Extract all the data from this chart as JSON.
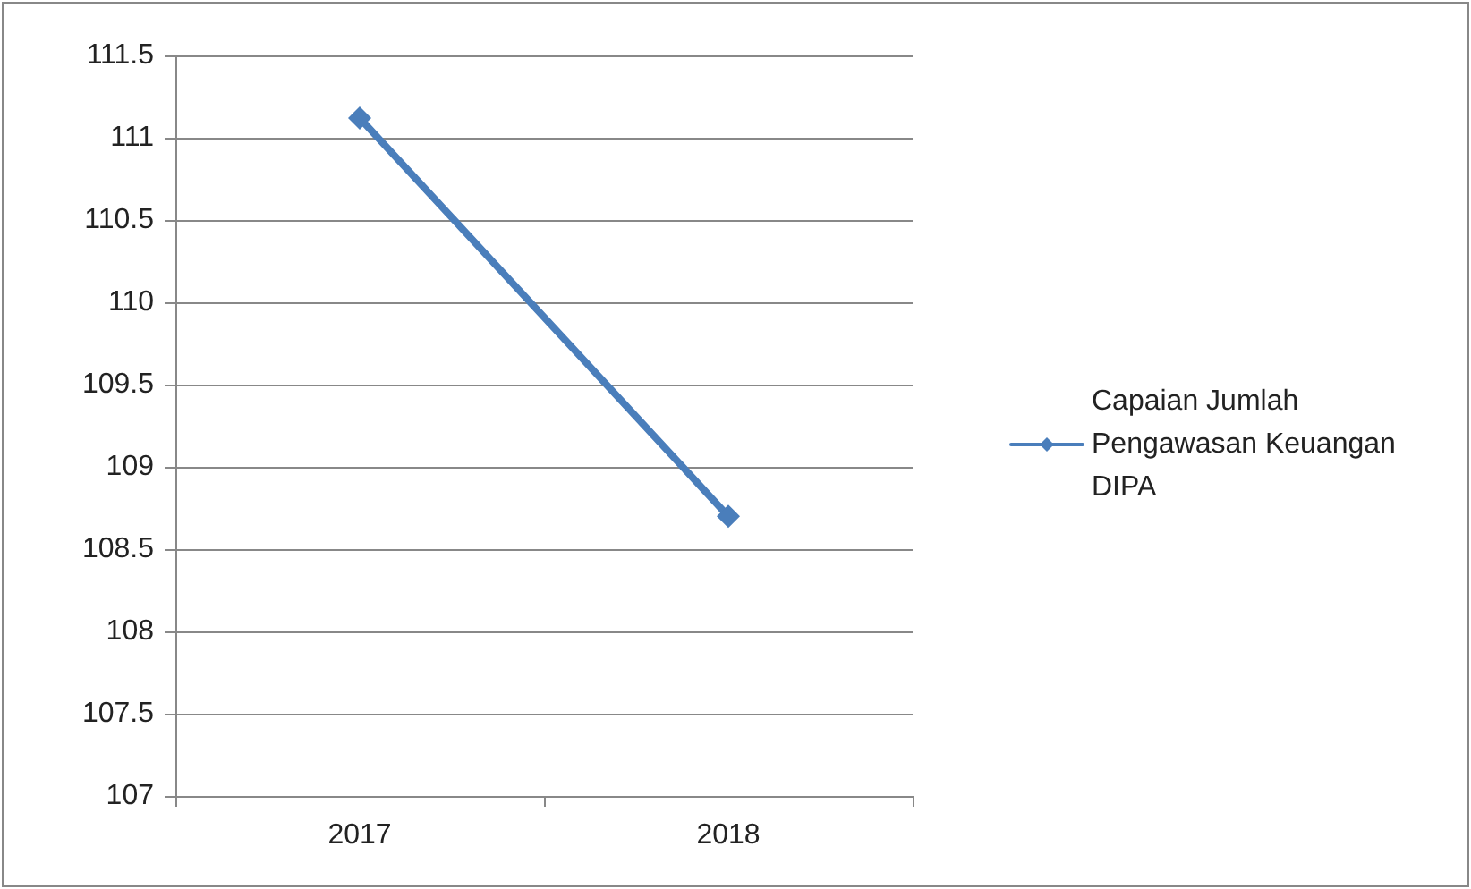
{
  "chart_data": {
    "type": "line",
    "categories": [
      "2017",
      "2018"
    ],
    "series": [
      {
        "name": "Capaian Jumlah Pengawasan Keuangan DIPA",
        "color": "#4a7ebb",
        "values": [
          111.12,
          108.7
        ]
      }
    ],
    "ylim": [
      107,
      111.5
    ],
    "yticks": [
      107,
      107.5,
      108,
      108.5,
      109,
      109.5,
      110,
      110.5,
      111,
      111.5
    ],
    "grid": "y",
    "legend": "right",
    "marker": "diamond",
    "line_style": "solid"
  }
}
